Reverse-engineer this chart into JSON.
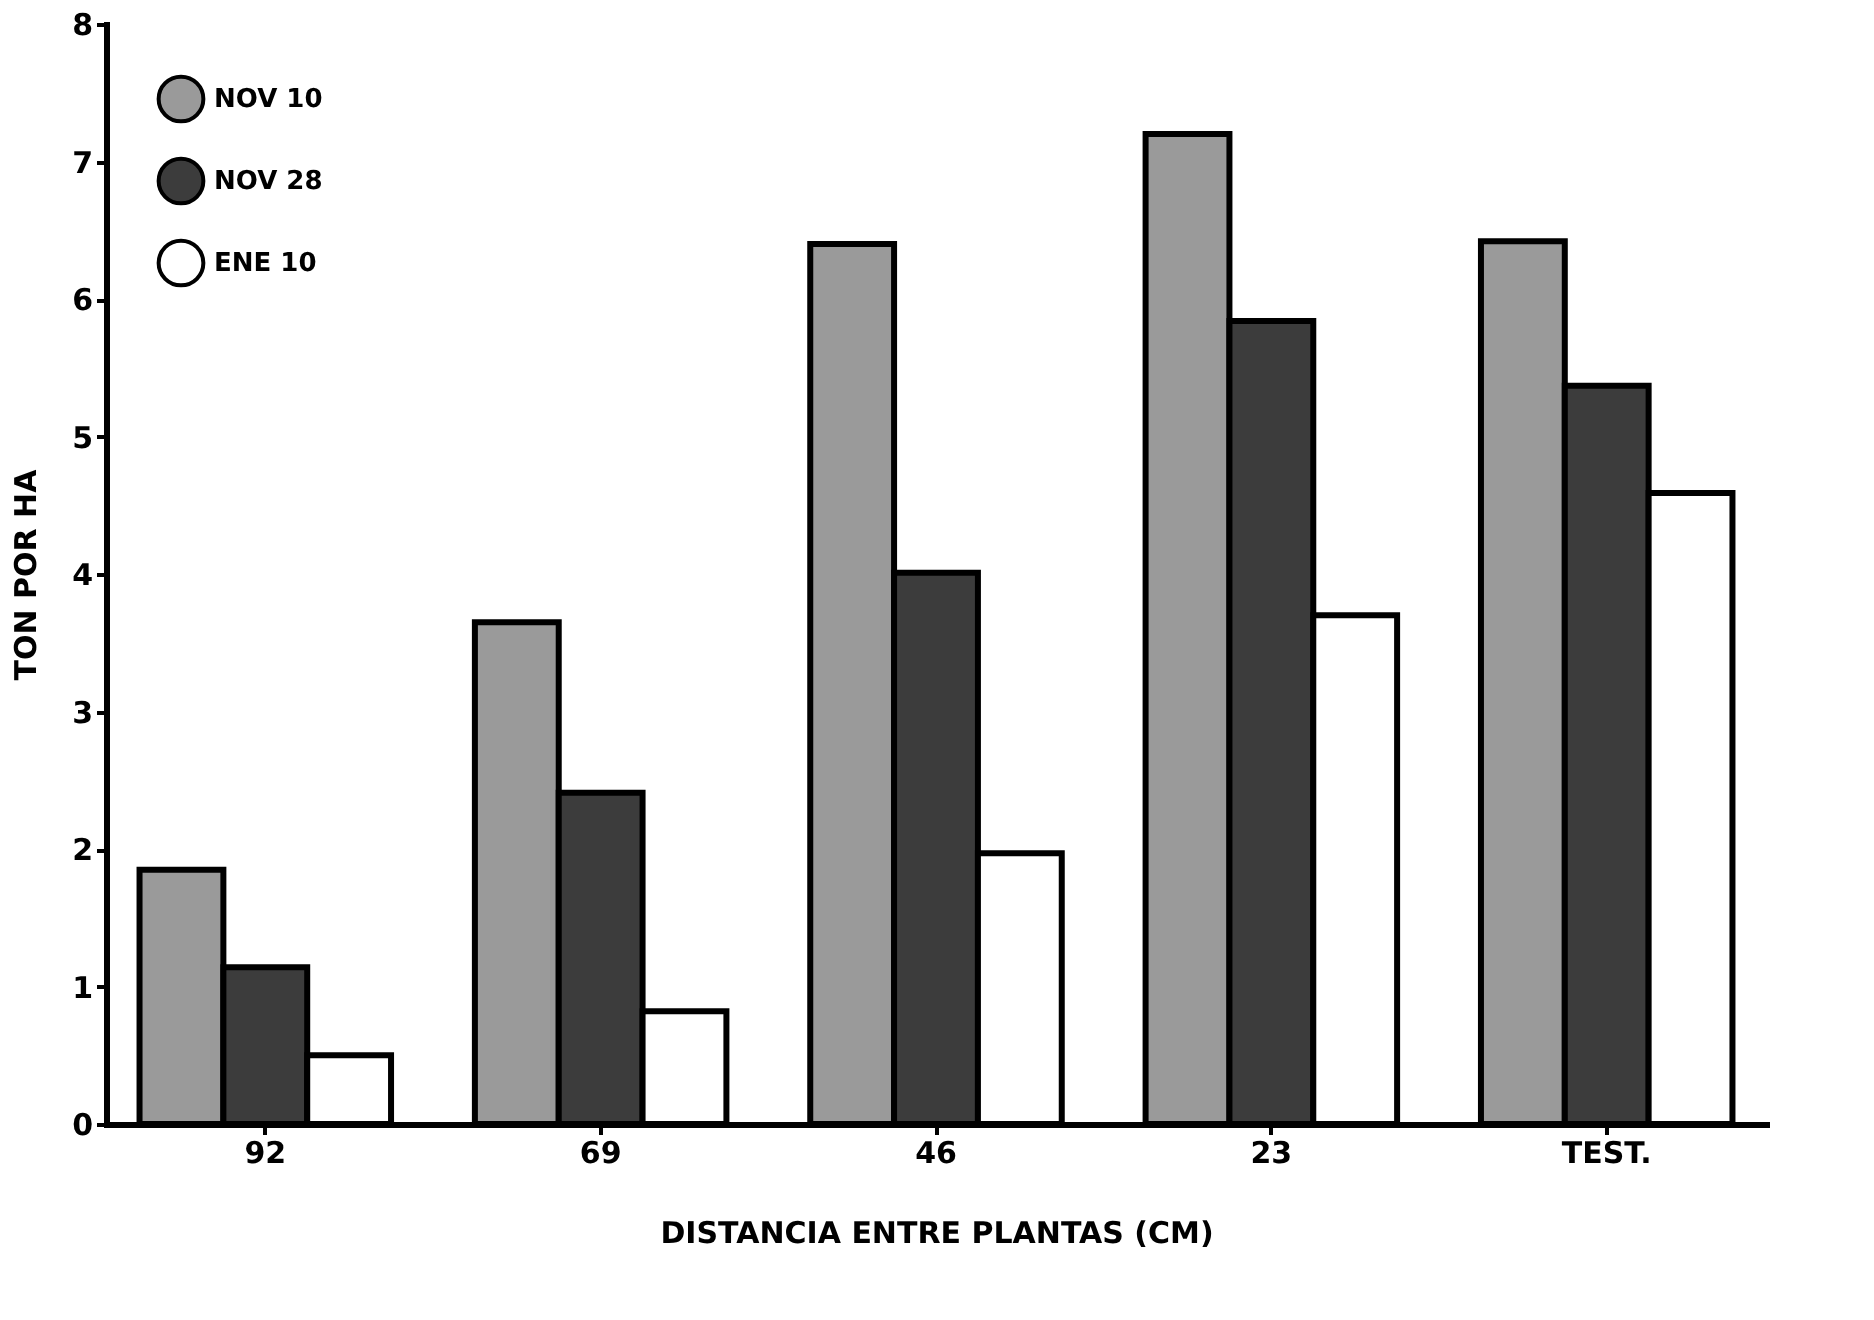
{
  "chart_data": {
    "type": "bar",
    "xlabel": "DISTANCIA ENTRE PLANTAS (CM)",
    "ylabel": "TON POR HA",
    "categories": [
      "92",
      "69",
      "46",
      "23",
      "TEST."
    ],
    "series": [
      {
        "name": "NOV 10",
        "color": "#9a9a9a",
        "values": [
          1.85,
          3.65,
          6.4,
          7.2,
          6.42
        ]
      },
      {
        "name": "NOV 28",
        "color": "#3c3c3c",
        "values": [
          1.14,
          2.41,
          4.01,
          5.84,
          5.37
        ]
      },
      {
        "name": "ENE 10",
        "color": "#ffffff",
        "values": [
          0.5,
          0.82,
          1.97,
          3.7,
          4.59
        ]
      }
    ],
    "ylim": [
      0,
      8
    ],
    "yticks": [
      0,
      1,
      2,
      3,
      4,
      5,
      6,
      7,
      8
    ],
    "grid": false,
    "legend": "top left"
  }
}
